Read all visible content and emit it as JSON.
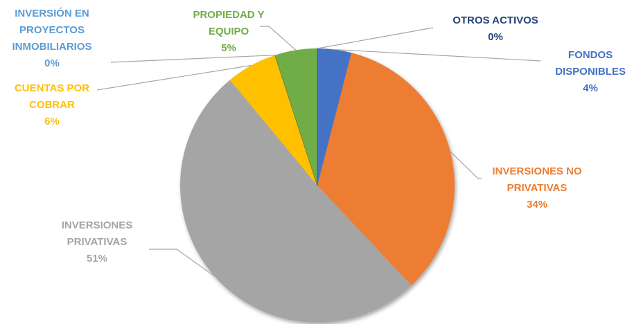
{
  "chart_data": {
    "type": "pie",
    "categories": [
      "FONDOS DISPONIBLES",
      "INVERSIONES NO PRIVATIVAS",
      "INVERSIONES PRIVATIVAS",
      "CUENTAS POR COBRAR",
      "INVERSIÓN EN PROYECTOS INMOBILIARIOS",
      "PROPIEDAD Y EQUIPO",
      "OTROS ACTIVOS"
    ],
    "values": [
      4,
      34,
      51,
      6,
      0,
      5,
      0
    ],
    "value_labels": [
      "4%",
      "34%",
      "51%",
      "6%",
      "0%",
      "5%",
      "0%"
    ],
    "colors": [
      "#4472c4",
      "#ed7d31",
      "#a5a5a5",
      "#ffc000",
      "#5b9bd5",
      "#70ad47",
      "#264478"
    ]
  }
}
